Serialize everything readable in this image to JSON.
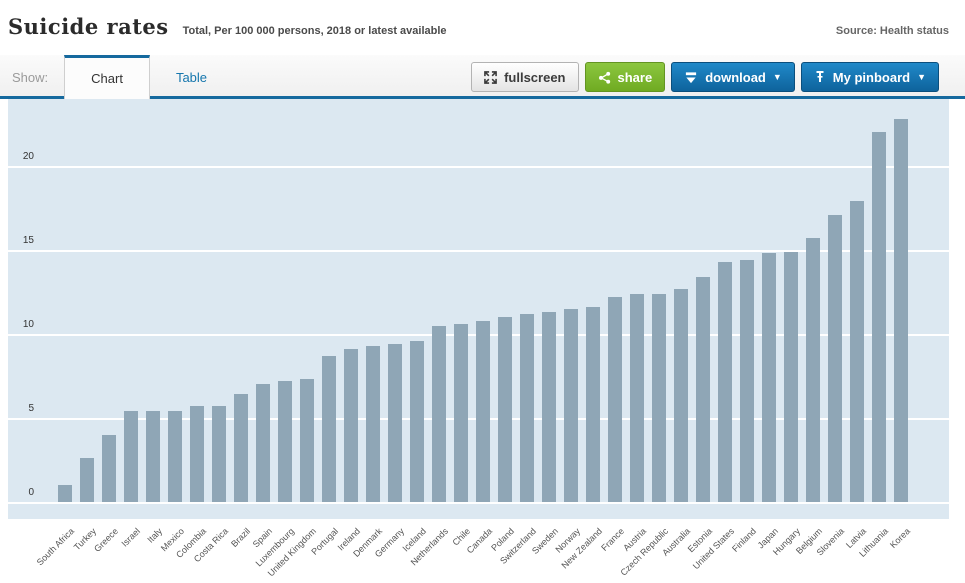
{
  "header": {
    "title": "Suicide rates",
    "subtitle": "Total, Per 100 000 persons, 2018 or latest available",
    "source": "Source: Health status"
  },
  "toolbar": {
    "show_label": "Show:",
    "tabs": [
      {
        "label": "Chart",
        "active": true
      },
      {
        "label": "Table",
        "active": false
      }
    ],
    "buttons": {
      "fullscreen": "fullscreen",
      "share": "share",
      "download": "download",
      "pinboard": "My pinboard"
    },
    "caret": "▼"
  },
  "colors": {
    "accent_blue": "#15699e",
    "button_blue": "#0e639c",
    "button_green": "#79b531",
    "tab_link_blue": "#1576ad",
    "chart_background": "#dce8f1",
    "bar_color": "#8fa6b6",
    "gridline": "#ffffff"
  },
  "chart_data": {
    "type": "bar",
    "title": "Suicide rates",
    "subtitle": "Total, Per 100 000 persons, 2018 or latest available",
    "ylabel": "Per 100 000 persons",
    "xlabel": "",
    "ylim": [
      0,
      25
    ],
    "yticks": [
      0,
      5,
      10,
      15,
      20
    ],
    "grid": true,
    "legend": "none",
    "bar_color": "#8fa6b6",
    "categories": [
      "South Africa",
      "Turkey",
      "Greece",
      "Israel",
      "Italy",
      "Mexico",
      "Colombia",
      "Costa Rica",
      "Brazil",
      "Spain",
      "Luxembourg",
      "United Kingdom",
      "Portugal",
      "Ireland",
      "Denmark",
      "Germany",
      "Iceland",
      "Netherlands",
      "Chile",
      "Canada",
      "Poland",
      "Switzerland",
      "Sweden",
      "Norway",
      "New Zealand",
      "France",
      "Austria",
      "Czech Republic",
      "Australia",
      "Estonia",
      "United States",
      "Finland",
      "Japan",
      "Hungary",
      "Belgium",
      "Slovenia",
      "Latvia",
      "Lithuania",
      "Korea"
    ],
    "values": [
      1.0,
      2.6,
      4.0,
      5.4,
      5.4,
      5.4,
      5.7,
      5.7,
      6.4,
      7.0,
      7.2,
      7.3,
      8.7,
      9.1,
      9.3,
      9.4,
      9.6,
      10.5,
      10.6,
      10.8,
      11.0,
      11.2,
      11.3,
      11.5,
      11.6,
      12.2,
      12.4,
      12.4,
      12.7,
      13.4,
      14.3,
      14.4,
      14.8,
      14.9,
      15.7,
      17.1,
      17.9,
      22.0,
      22.8
    ]
  }
}
